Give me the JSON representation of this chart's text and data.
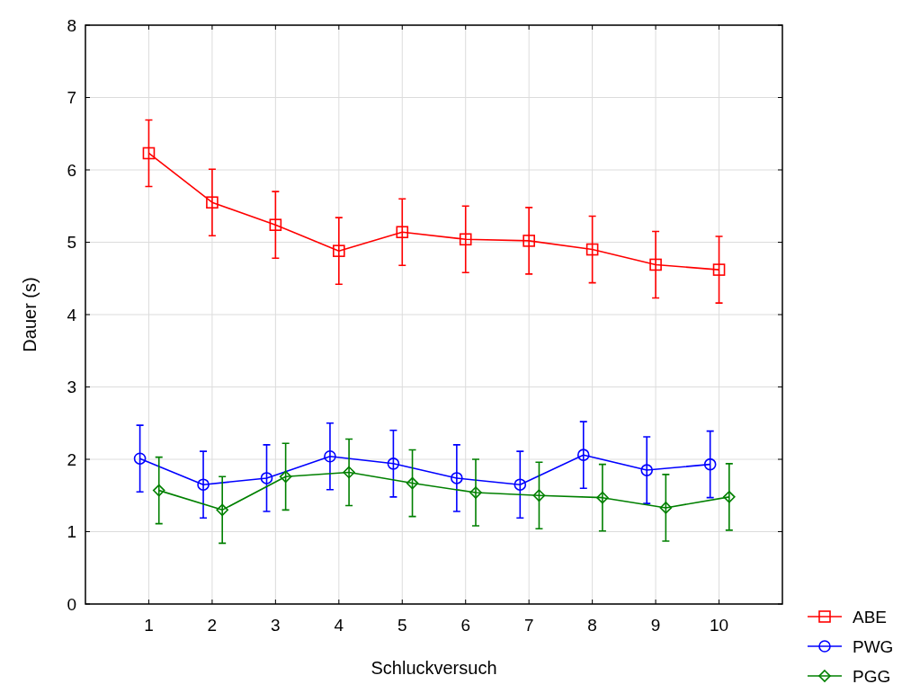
{
  "chart_data": {
    "type": "line",
    "xlabel": "Schluckversuch",
    "ylabel": "Dauer (s)",
    "xlim": [
      0,
      11
    ],
    "xticks": [
      1,
      2,
      3,
      4,
      5,
      6,
      7,
      8,
      9,
      10
    ],
    "ylim": [
      0,
      8
    ],
    "yticks": [
      0,
      1,
      2,
      3,
      4,
      5,
      6,
      7,
      8
    ],
    "grid": true,
    "legend": "bottom right",
    "line_style": "solid",
    "series": [
      {
        "name": "ABE",
        "color": "#ff0000",
        "marker": "square",
        "x": [
          1,
          2,
          3,
          4,
          5,
          6,
          7,
          8,
          9,
          10
        ],
        "values": [
          6.23,
          5.55,
          5.24,
          4.88,
          5.14,
          5.04,
          5.02,
          4.9,
          4.69,
          4.62
        ],
        "errors": [
          0.46,
          0.46,
          0.46,
          0.46,
          0.46,
          0.46,
          0.46,
          0.46,
          0.46,
          0.46
        ]
      },
      {
        "name": "PWG",
        "color": "#0000ff",
        "marker": "circle",
        "x": [
          0.86,
          1.86,
          2.86,
          3.86,
          4.86,
          5.86,
          6.86,
          7.86,
          8.86,
          9.86
        ],
        "values": [
          2.01,
          1.65,
          1.74,
          2.04,
          1.94,
          1.74,
          1.65,
          2.06,
          1.85,
          1.93
        ],
        "errors": [
          0.46,
          0.46,
          0.46,
          0.46,
          0.46,
          0.46,
          0.46,
          0.46,
          0.46,
          0.46
        ]
      },
      {
        "name": "PGG",
        "color": "#008000",
        "marker": "diamond",
        "x": [
          1.16,
          2.16,
          3.16,
          4.16,
          5.16,
          6.16,
          7.16,
          8.16,
          9.16,
          10.16
        ],
        "values": [
          1.57,
          1.3,
          1.76,
          1.82,
          1.67,
          1.54,
          1.5,
          1.47,
          1.33,
          1.48
        ],
        "errors": [
          0.46,
          0.46,
          0.46,
          0.46,
          0.46,
          0.46,
          0.46,
          0.46,
          0.46,
          0.46
        ]
      }
    ]
  }
}
